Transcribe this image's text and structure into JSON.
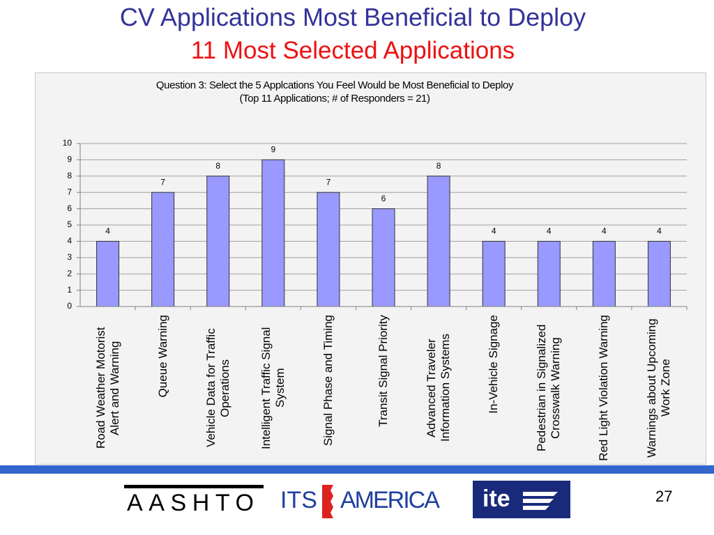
{
  "slide": {
    "title": "CV Applications Most Beneficial to Deploy",
    "subtitle": "11 Most Selected Applications",
    "page_number": 27,
    "logos": {
      "aashto": "AASHTO",
      "its": "ITS",
      "america": "AMERICA",
      "ite": "ite"
    }
  },
  "chart_data": {
    "type": "bar",
    "title": "Question 3: Select the 5 Applcations You Feel Would be Most Beneficial to Deploy",
    "subtitle": "(Top 11 Applications;  # of Responders = 21)",
    "categories": [
      "Road Weather Motorist Alert and Warning",
      "Queue Warning",
      "Vehicle Data for Traffic Operations",
      "Intelligent Traffic Signal System",
      "Signal Phase and Timing",
      "Transit Signal Priority",
      "Advanced Traveler Information Systems",
      "In-Vehicle Signage",
      "Pedestrian in Signalized Crosswalk Warning",
      "Red Light Violation Warning",
      "Warnings about Upcoming Work Zone"
    ],
    "values": [
      4,
      7,
      8,
      9,
      7,
      6,
      8,
      4,
      4,
      4,
      4
    ],
    "color": "#9999ff",
    "ylim": [
      0,
      10
    ],
    "yticks": [
      0,
      1,
      2,
      3,
      4,
      5,
      6,
      7,
      8,
      9,
      10
    ],
    "grid": true
  }
}
